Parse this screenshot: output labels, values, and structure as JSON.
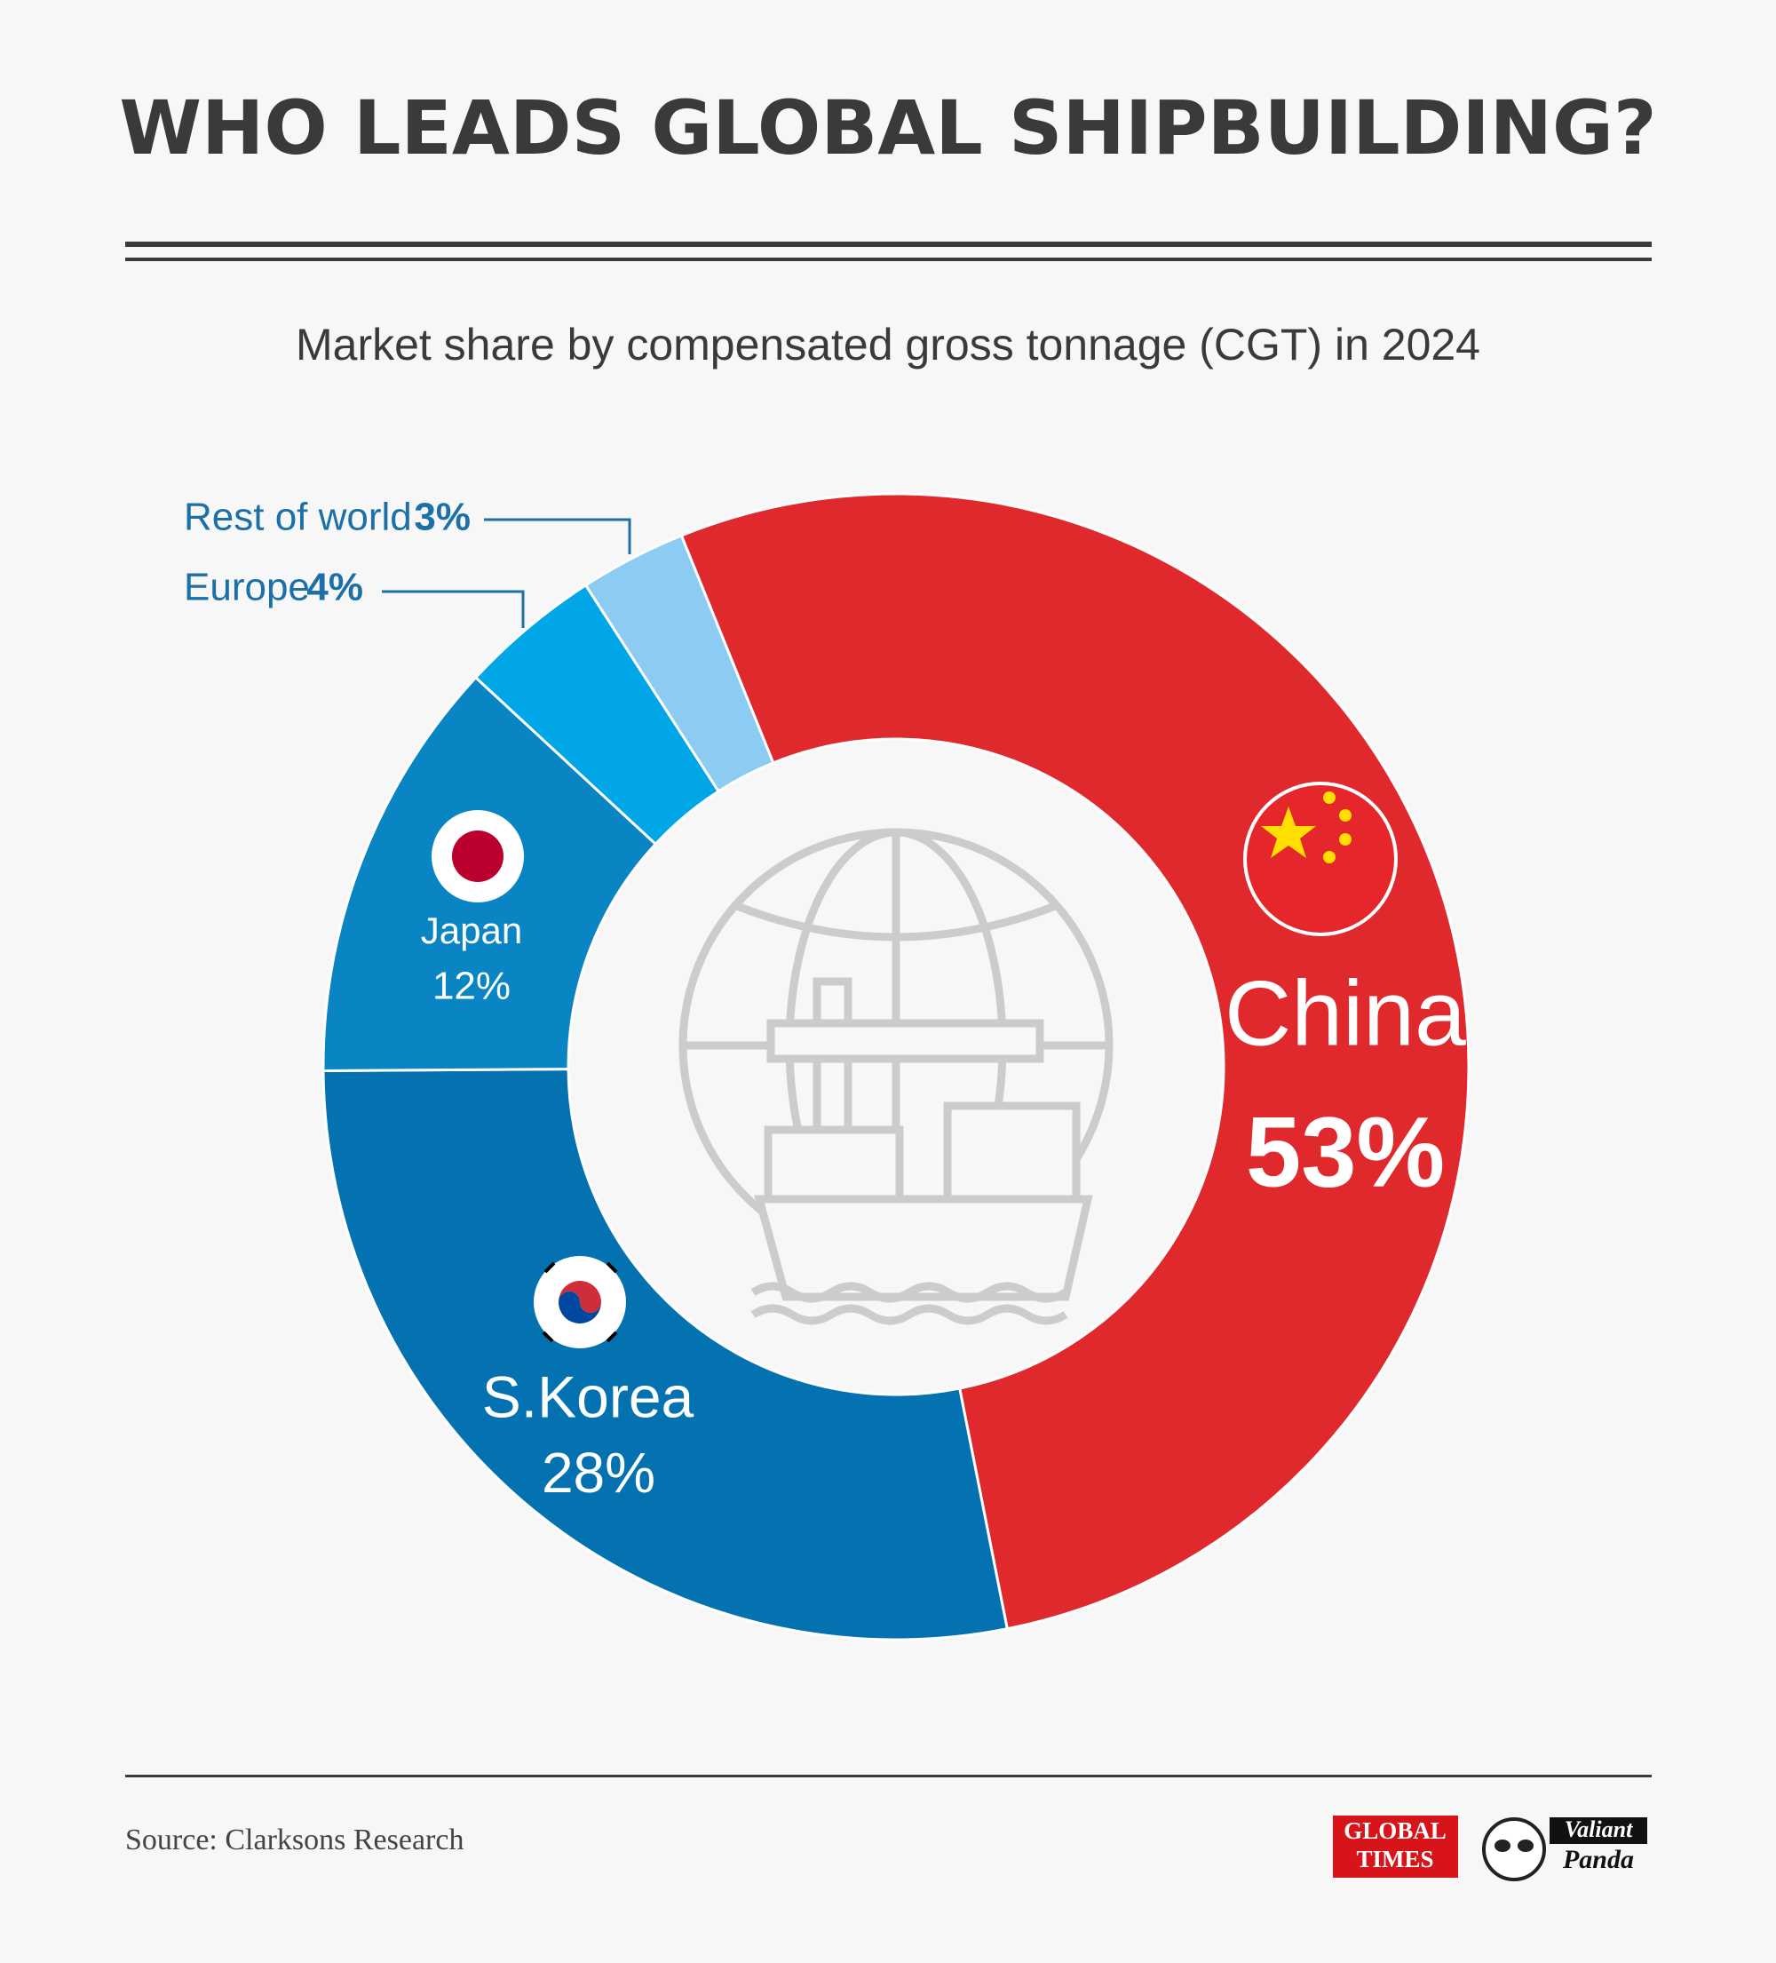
{
  "chart_data": {
    "type": "pie",
    "title": "WHO LEADS GLOBAL SHIPBUILDING?",
    "subtitle": "Market share by compensated gross tonnage (CGT) in 2024",
    "categories": [
      "China",
      "S.Korea",
      "Japan",
      "Europe",
      "Rest of world"
    ],
    "values": [
      53,
      28,
      12,
      4,
      3
    ],
    "value_labels": [
      "53%",
      "28%",
      "12%",
      "4%",
      "3%"
    ],
    "colors": [
      "#e0292d",
      "#0472b0",
      "#0a85c4",
      "#00a6e6",
      "#8ccbf2"
    ],
    "source": "Source: Clarksons Research",
    "logos": {
      "global_times": [
        "GLOBAL",
        "TIMES"
      ],
      "valiant_panda": [
        "Valiant",
        "Panda"
      ]
    }
  }
}
